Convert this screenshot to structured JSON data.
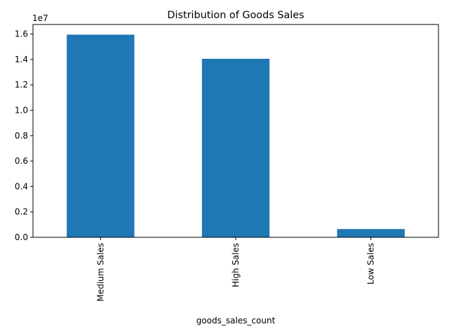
{
  "chart_data": {
    "type": "bar",
    "title": "Distribution of Goods Sales",
    "xlabel": "goods_sales_count",
    "ylabel": "",
    "categories": [
      "Medium Sales",
      "High Sales",
      "Low Sales"
    ],
    "values": [
      15950000,
      14050000,
      650000
    ],
    "ylim": [
      0,
      16750000
    ],
    "y_ticks": [
      0,
      2000000,
      4000000,
      6000000,
      8000000,
      10000000,
      12000000,
      14000000,
      16000000
    ],
    "y_tick_labels": [
      "0.0",
      "0.2",
      "0.4",
      "0.6",
      "0.8",
      "1.0",
      "1.2",
      "1.4",
      "1.6"
    ],
    "offset_label": "1e7",
    "bar_color": "#1f77b4",
    "grid": false,
    "legend": "none"
  }
}
